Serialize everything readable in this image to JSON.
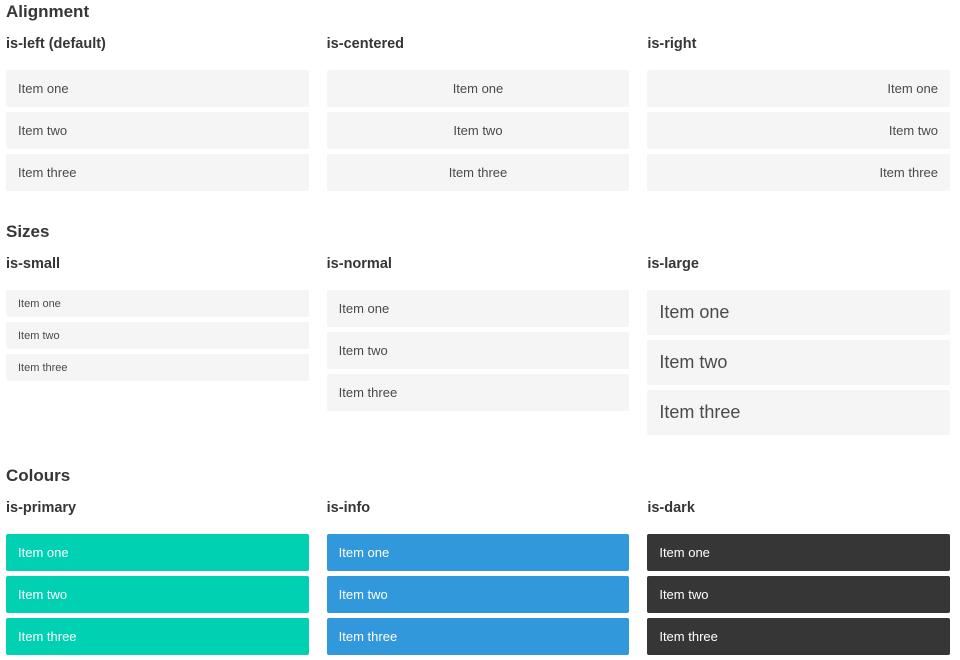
{
  "sections": [
    {
      "title": "Alignment",
      "columns": [
        {
          "subtitle": "is-left (default)",
          "items": [
            "Item one",
            "Item two",
            "Item three"
          ]
        },
        {
          "subtitle": "is-centered",
          "items": [
            "Item one",
            "Item two",
            "Item three"
          ]
        },
        {
          "subtitle": "is-right",
          "items": [
            "Item one",
            "Item two",
            "Item three"
          ]
        }
      ]
    },
    {
      "title": "Sizes",
      "columns": [
        {
          "subtitle": "is-small",
          "items": [
            "Item one",
            "Item two",
            "Item three"
          ]
        },
        {
          "subtitle": "is-normal",
          "items": [
            "Item one",
            "Item two",
            "Item three"
          ]
        },
        {
          "subtitle": "is-large",
          "items": [
            "Item one",
            "Item two",
            "Item three"
          ]
        }
      ]
    },
    {
      "title": "Colours",
      "columns": [
        {
          "subtitle": "is-primary",
          "items": [
            "Item one",
            "Item two",
            "Item three"
          ]
        },
        {
          "subtitle": "is-info",
          "items": [
            "Item one",
            "Item two",
            "Item three"
          ]
        },
        {
          "subtitle": "is-dark",
          "items": [
            "Item one",
            "Item two",
            "Item three"
          ]
        }
      ]
    }
  ],
  "colors": {
    "primary": "#00d1b2",
    "info": "#3298dc",
    "dark": "#363636",
    "item_background": "#f5f5f5",
    "item_text": "#4a4a4a",
    "item_text_on_color": "#ffffff",
    "heading_text": "#363636",
    "page_background": "#ffffff"
  }
}
